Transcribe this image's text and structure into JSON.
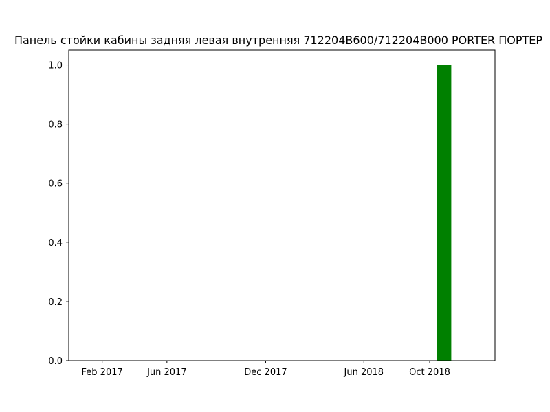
{
  "chart_data": {
    "type": "bar",
    "title": "Панель стойки кабины задняя левая внутренняя 712204B600/712204B000 PORTER ПОРТЕР",
    "xlabel": "",
    "ylabel": "",
    "x_axis_type": "date",
    "xlim": [
      "2016-12-01",
      "2019-01-30"
    ],
    "ylim": [
      0,
      1.05
    ],
    "x_ticks": [
      {
        "date": "2017-02-01",
        "label": "Feb 2017"
      },
      {
        "date": "2017-06-01",
        "label": "Jun 2017"
      },
      {
        "date": "2017-12-01",
        "label": "Dec 2017"
      },
      {
        "date": "2018-06-01",
        "label": "Jun 2018"
      },
      {
        "date": "2018-10-01",
        "label": "Oct 2018"
      }
    ],
    "y_ticks": [
      {
        "value": 0.0,
        "label": "0.0"
      },
      {
        "value": 0.2,
        "label": "0.2"
      },
      {
        "value": 0.4,
        "label": "0.4"
      },
      {
        "value": 0.6,
        "label": "0.6"
      },
      {
        "value": 0.8,
        "label": "0.8"
      },
      {
        "value": 1.0,
        "label": "1.0"
      }
    ],
    "bars": [
      {
        "start": "2018-10-14",
        "end": "2018-11-10",
        "value": 1.0
      }
    ],
    "grid": false,
    "legend": "none",
    "bar_color": "#008000"
  }
}
